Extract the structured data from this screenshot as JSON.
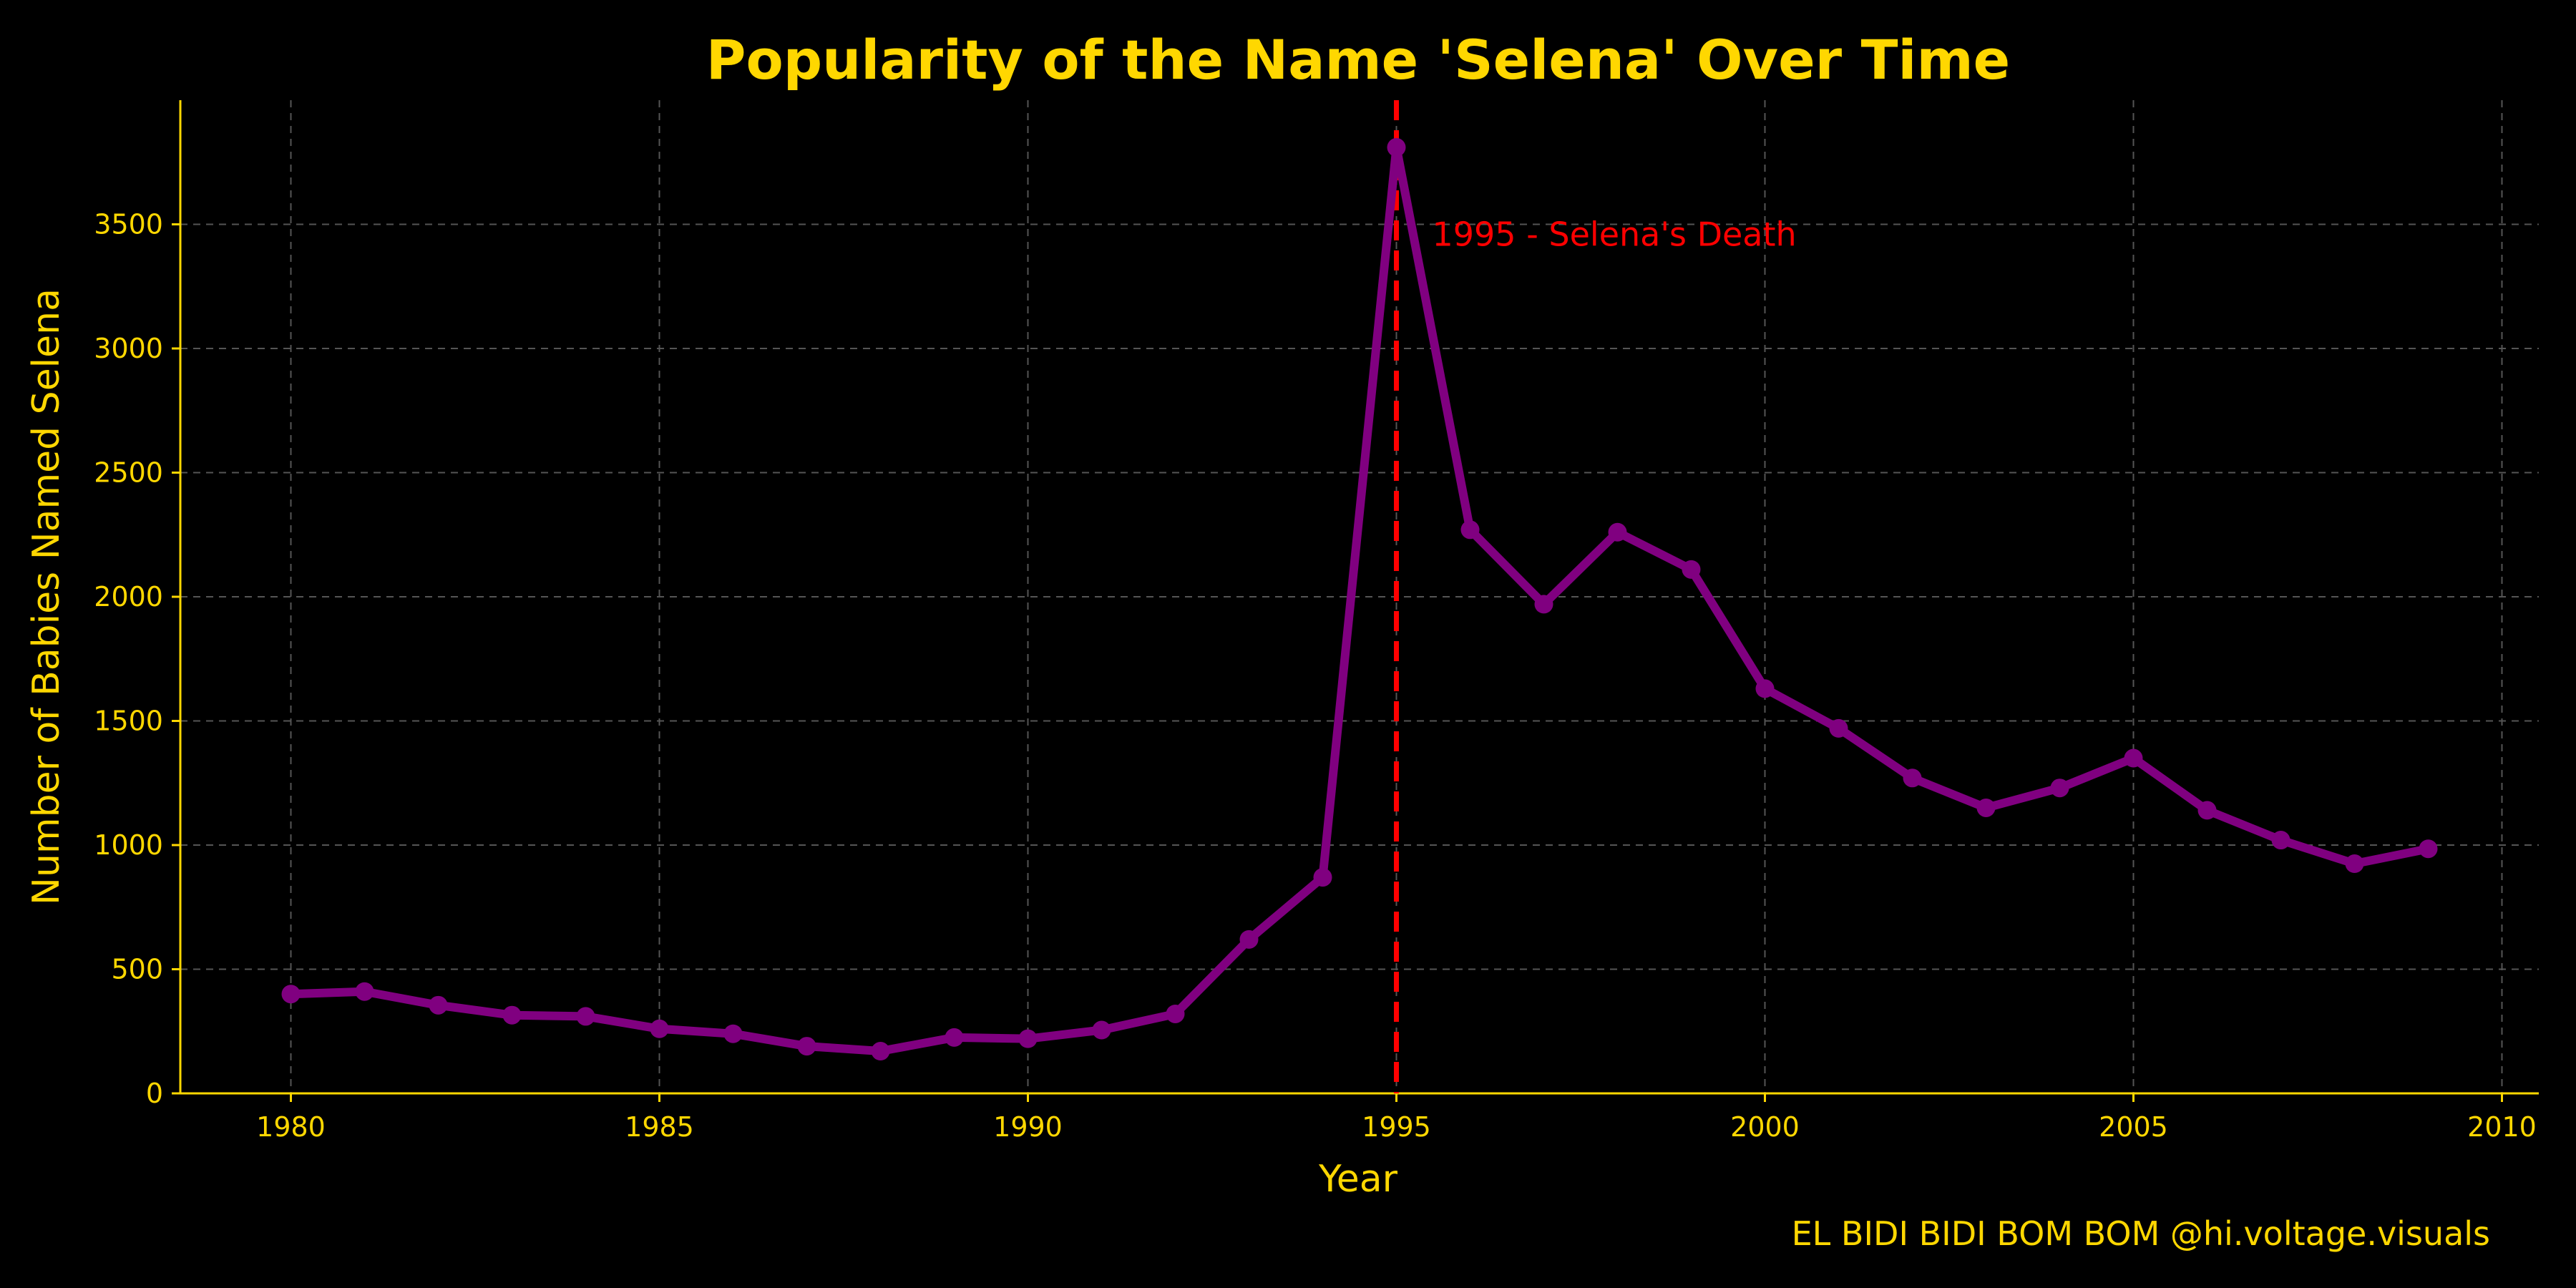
{
  "colors": {
    "background": "#000000",
    "text": "#FFD700",
    "line": "#800080",
    "marker": "#800080",
    "grid": "#555555",
    "vline": "#FF0000",
    "annotation": "#FF0000"
  },
  "footer": {
    "text": "EL BIDI BIDI BOM BOM   @hi.voltage.visuals"
  },
  "chart_data": {
    "type": "line",
    "title": "Popularity of the Name 'Selena' Over Time",
    "xlabel": "Year",
    "ylabel": "Number of Babies Named Selena",
    "xlim": [
      1978.5,
      2010.5
    ],
    "ylim": [
      0,
      4000
    ],
    "xticks": [
      1980,
      1985,
      1990,
      1995,
      2000,
      2005,
      2010
    ],
    "yticks": [
      0,
      500,
      1000,
      1500,
      2000,
      2500,
      3000,
      3500
    ],
    "grid": true,
    "x": [
      1980,
      1981,
      1982,
      1983,
      1984,
      1985,
      1986,
      1987,
      1988,
      1989,
      1990,
      1991,
      1992,
      1993,
      1994,
      1995,
      1996,
      1997,
      1998,
      1999,
      2000,
      2001,
      2002,
      2003,
      2004,
      2005,
      2006,
      2007,
      2008,
      2009
    ],
    "series": [
      {
        "values": [
          400,
          410,
          355,
          315,
          310,
          260,
          240,
          190,
          170,
          225,
          220,
          255,
          320,
          620,
          870,
          3810,
          2270,
          1970,
          2260,
          2110,
          1630,
          1470,
          1270,
          1150,
          1230,
          1350,
          1140,
          1020,
          925,
          985
        ]
      }
    ],
    "annotations": [
      {
        "x": 1995,
        "text": "1995 - Selena's Death",
        "y": 3460
      }
    ]
  }
}
